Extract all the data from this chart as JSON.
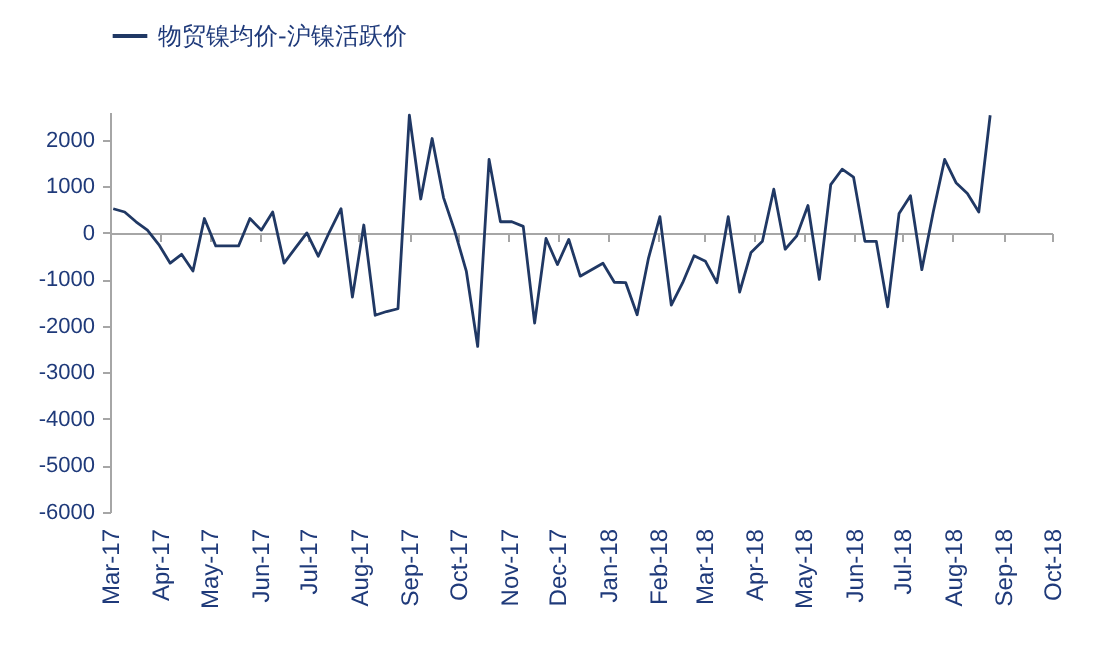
{
  "chart_data": {
    "type": "line",
    "x": [
      "2017-03-03",
      "2017-03-10",
      "2017-03-17",
      "2017-03-24",
      "2017-03-31",
      "2017-04-07",
      "2017-04-14",
      "2017-04-21",
      "2017-04-28",
      "2017-05-05",
      "2017-05-12",
      "2017-05-19",
      "2017-05-26",
      "2017-06-02",
      "2017-06-09",
      "2017-06-16",
      "2017-06-23",
      "2017-06-30",
      "2017-07-07",
      "2017-07-14",
      "2017-07-21",
      "2017-07-28",
      "2017-08-04",
      "2017-08-11",
      "2017-08-18",
      "2017-08-25",
      "2017-09-01",
      "2017-09-08",
      "2017-09-15",
      "2017-09-22",
      "2017-09-29",
      "2017-10-06",
      "2017-10-13",
      "2017-10-20",
      "2017-10-27",
      "2017-11-03",
      "2017-11-10",
      "2017-11-17",
      "2017-11-24",
      "2017-12-01",
      "2017-12-08",
      "2017-12-15",
      "2017-12-22",
      "2017-12-29",
      "2018-01-05",
      "2018-01-12",
      "2018-01-19",
      "2018-01-26",
      "2018-02-02",
      "2018-02-09",
      "2018-02-16",
      "2018-02-23",
      "2018-03-02",
      "2018-03-09",
      "2018-03-16",
      "2018-03-23",
      "2018-03-30",
      "2018-04-06",
      "2018-04-13",
      "2018-04-20",
      "2018-04-27",
      "2018-05-04",
      "2018-05-11",
      "2018-05-18",
      "2018-05-25",
      "2018-06-01",
      "2018-06-08",
      "2018-06-15",
      "2018-06-22",
      "2018-06-29",
      "2018-07-06",
      "2018-07-13",
      "2018-07-20",
      "2018-07-27",
      "2018-08-03",
      "2018-08-10",
      "2018-08-17",
      "2018-08-24"
    ],
    "series": [
      {
        "name": "物贸镍均价-沪镍活跃价",
        "color": "#203864",
        "values": [
          520,
          450,
          240,
          60,
          -250,
          -650,
          -460,
          -820,
          310,
          -280,
          -280,
          -280,
          310,
          60,
          450,
          -650,
          -320,
          0,
          -500,
          30,
          520,
          -1380,
          170,
          -1770,
          -1690,
          -1630,
          2530,
          730,
          2030,
          760,
          30,
          -820,
          -2440,
          1580,
          240,
          240,
          140,
          -1940,
          -120,
          -680,
          -140,
          -930,
          -790,
          -650,
          -1060,
          -1070,
          -1760,
          -540,
          350,
          -1550,
          -1070,
          -490,
          -610,
          -1070,
          350,
          -1270,
          -420,
          -180,
          940,
          -350,
          -70,
          590,
          -1000,
          1040,
          1370,
          1200,
          -180,
          -180,
          -1590,
          420,
          800,
          -790,
          450,
          1580,
          1080,
          850,
          450,
          2530
        ]
      }
    ],
    "xlim": [
      "2017-03-01",
      "2018-10-01"
    ],
    "xticks": [
      {
        "value": "2017-03-01",
        "label": "Mar-17"
      },
      {
        "value": "2017-04-01",
        "label": "Apr-17"
      },
      {
        "value": "2017-05-01",
        "label": "May-17"
      },
      {
        "value": "2017-06-01",
        "label": "Jun-17"
      },
      {
        "value": "2017-07-01",
        "label": "Jul-17"
      },
      {
        "value": "2017-08-01",
        "label": "Aug-17"
      },
      {
        "value": "2017-09-01",
        "label": "Sep-17"
      },
      {
        "value": "2017-10-01",
        "label": "Oct-17"
      },
      {
        "value": "2017-11-01",
        "label": "Nov-17"
      },
      {
        "value": "2017-12-01",
        "label": "Dec-17"
      },
      {
        "value": "2018-01-01",
        "label": "Jan-18"
      },
      {
        "value": "2018-02-01",
        "label": "Feb-18"
      },
      {
        "value": "2018-03-01",
        "label": "Mar-18"
      },
      {
        "value": "2018-04-01",
        "label": "Apr-18"
      },
      {
        "value": "2018-05-01",
        "label": "May-18"
      },
      {
        "value": "2018-06-01",
        "label": "Jun-18"
      },
      {
        "value": "2018-07-01",
        "label": "Jul-18"
      },
      {
        "value": "2018-08-01",
        "label": "Aug-18"
      },
      {
        "value": "2018-09-01",
        "label": "Sep-18"
      },
      {
        "value": "2018-10-01",
        "label": "Oct-18"
      }
    ],
    "ylim": [
      -6000,
      2600
    ],
    "yticks": [
      -6000,
      -5000,
      -4000,
      -3000,
      -2000,
      -1000,
      0,
      1000,
      2000
    ],
    "legend": "top"
  }
}
